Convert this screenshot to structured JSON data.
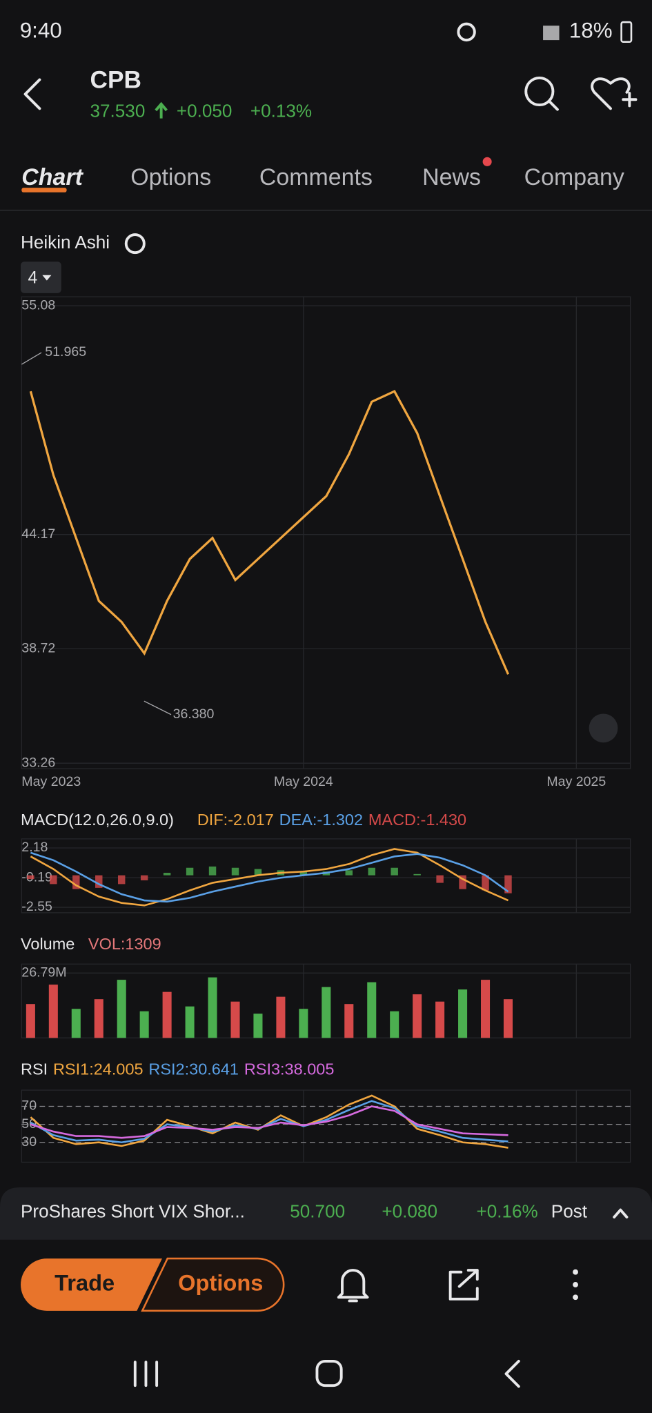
{
  "status_bar": {
    "time": "9:40",
    "battery": "18%"
  },
  "header": {
    "symbol": "CPB",
    "price": "37.530",
    "change": "+0.050",
    "change_pct": "+0.13%"
  },
  "tabs": [
    "Chart",
    "Options",
    "Comments",
    "News",
    "Company"
  ],
  "chart_style": "Heikin Ashi",
  "interval": "4",
  "chart_data": [
    {
      "type": "line",
      "categories": [
        "May 2023",
        null,
        null,
        null,
        null,
        null,
        null,
        null,
        null,
        null,
        null,
        null,
        "May 2024",
        null,
        null,
        null,
        null,
        null,
        null,
        null,
        null,
        null,
        null,
        null,
        "May 2025"
      ],
      "values": [
        51,
        47,
        44,
        41,
        40,
        38.5,
        41,
        43,
        44,
        42,
        43,
        44,
        45,
        46,
        48,
        50.5,
        51,
        49,
        46,
        43,
        40,
        37.5,
        null,
        null,
        null
      ],
      "color": "#f0a640",
      "ylim": [
        33.0,
        55.51
      ],
      "yticks": [
        55.08,
        44.17,
        38.72,
        33.26
      ],
      "grid": true,
      "annotations": [
        "51.965",
        "36.380"
      ]
    },
    {
      "type": "line",
      "title": "MACD(12.0,26.0,9.0)",
      "ylim": [
        -2.98,
        2.9
      ],
      "yticks": [
        2.18,
        -0.19,
        -2.55
      ],
      "series": [
        {
          "label": "MACD:-1.430",
          "color": "#d64a4a",
          "style": "bar",
          "values": [
            -0.3,
            -0.7,
            -1.1,
            -1.0,
            -0.7,
            -0.4,
            0.2,
            0.6,
            0.7,
            0.6,
            0.5,
            0.4,
            0.3,
            0.3,
            0.4,
            0.6,
            0.6,
            0.1,
            -0.6,
            -1.1,
            -1.2,
            -1.43,
            null,
            null,
            null
          ]
        },
        {
          "label": "DIF:-2.017",
          "color": "#f0a640",
          "style": "line",
          "values": [
            1.5,
            0.5,
            -0.8,
            -1.7,
            -2.2,
            -2.4,
            -1.9,
            -1.2,
            -0.6,
            -0.3,
            0,
            0.2,
            0.3,
            0.5,
            0.9,
            1.6,
            2.1,
            1.8,
            0.8,
            -0.3,
            -1.2,
            -2.0,
            null,
            null,
            null
          ]
        },
        {
          "label": "DEA:-1.302",
          "color": "#5aa0e6",
          "style": "line",
          "values": [
            1.8,
            1.2,
            0.3,
            -0.7,
            -1.5,
            -2.0,
            -2.1,
            -1.8,
            -1.3,
            -0.9,
            -0.5,
            -0.2,
            0,
            0.2,
            0.5,
            1.0,
            1.5,
            1.7,
            1.4,
            0.8,
            0,
            -1.3,
            null,
            null,
            null
          ]
        }
      ]
    },
    {
      "type": "bar",
      "title": "Volume",
      "label": "VOL:1309",
      "ylim": [
        0,
        30500000
      ],
      "yticks": [
        {
          "value": 26790000,
          "label": "26.79M"
        }
      ],
      "values": [
        14000000,
        22000000,
        12000000,
        16000000,
        24000000,
        11000000,
        19000000,
        13000000,
        25000000,
        15000000,
        10000000,
        17000000,
        12000000,
        21000000,
        14000000,
        23000000,
        11000000,
        18000000,
        15000000,
        20000000,
        24000000,
        16000000,
        null,
        null,
        null
      ],
      "colors": [
        "#d64a4a",
        "#d64a4a",
        "#4caf50",
        "#d64a4a",
        "#4caf50",
        "#4caf50",
        "#d64a4a",
        "#4caf50",
        "#4caf50",
        "#d64a4a",
        "#4caf50",
        "#d64a4a",
        "#4caf50",
        "#4caf50",
        "#d64a4a",
        "#4caf50",
        "#4caf50",
        "#d64a4a",
        "#d64a4a",
        "#4caf50",
        "#d64a4a",
        "#d64a4a",
        null,
        null,
        null
      ]
    },
    {
      "type": "line",
      "title": "RSI",
      "ylim": [
        8,
        88
      ],
      "yticks": [
        70,
        50,
        30
      ],
      "series": [
        {
          "label": "RSI1:24.005",
          "color": "#f0a640",
          "values": [
            58,
            35,
            28,
            30,
            26,
            32,
            55,
            48,
            40,
            52,
            44,
            60,
            48,
            58,
            72,
            82,
            70,
            45,
            38,
            30,
            28,
            24,
            null,
            null,
            null
          ]
        },
        {
          "label": "RSI2:30.641",
          "color": "#5aa0e6",
          "values": [
            52,
            38,
            32,
            33,
            30,
            34,
            50,
            47,
            42,
            49,
            45,
            56,
            48,
            55,
            66,
            76,
            68,
            48,
            42,
            35,
            33,
            31,
            null,
            null,
            null
          ]
        },
        {
          "label": "RSI3:38.005",
          "color": "#d66adf",
          "values": [
            50,
            42,
            37,
            37,
            35,
            37,
            47,
            46,
            44,
            47,
            46,
            52,
            49,
            53,
            60,
            70,
            65,
            50,
            45,
            40,
            39,
            38,
            null,
            null,
            null
          ]
        }
      ]
    }
  ],
  "ticker_bar": {
    "name": "ProShares Short VIX Shor...",
    "price": "50.700",
    "change": "+0.080",
    "change_pct": "+0.16%",
    "session": "Post"
  },
  "actions": {
    "trade": "Trade",
    "options": "Options"
  }
}
